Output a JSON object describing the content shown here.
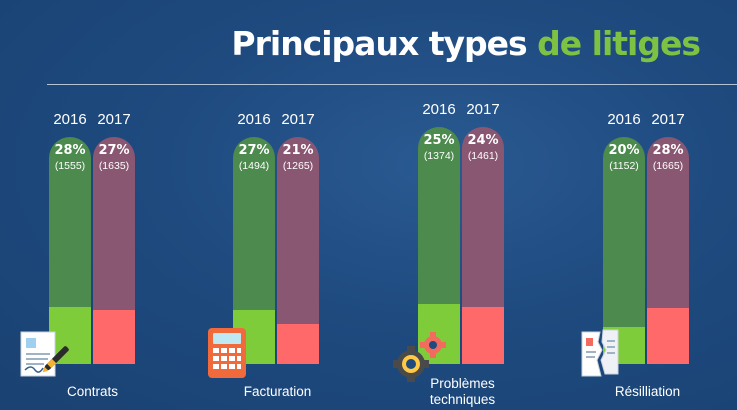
{
  "title": {
    "part1": "Principaux types ",
    "part2": "de litiges"
  },
  "colors": {
    "accent": "#7dc242",
    "bar2016_top": "#4c8a4e",
    "bar2016_bottom": "#7fcc3b",
    "bar2017_top": "#8a5772",
    "bar2017_bottom": "#ff6969"
  },
  "chart_data": {
    "type": "bar",
    "title": "Principaux types de litiges",
    "categories": [
      "Contrats",
      "Facturation",
      "Problèmes techniques",
      "Résilliation"
    ],
    "series": [
      {
        "name": "2016",
        "values": [
          28,
          27,
          25,
          20
        ],
        "counts": [
          1555,
          1494,
          1374,
          1152
        ]
      },
      {
        "name": "2017",
        "values": [
          27,
          21,
          24,
          28
        ],
        "counts": [
          1635,
          1265,
          1461,
          1665
        ]
      }
    ],
    "groups": [
      {
        "category": "Contrats",
        "icon": "contract-signature-icon",
        "bars": [
          {
            "year": "2016",
            "pct": "28%",
            "count": "(1555)"
          },
          {
            "year": "2017",
            "pct": "27%",
            "count": "(1635)"
          }
        ]
      },
      {
        "category": "Facturation",
        "icon": "calculator-icon",
        "bars": [
          {
            "year": "2016",
            "pct": "27%",
            "count": "(1494)"
          },
          {
            "year": "2017",
            "pct": "21%",
            "count": "(1265)"
          }
        ]
      },
      {
        "category": "Problèmes techniques",
        "icon": "gears-icon",
        "bars": [
          {
            "year": "2016",
            "pct": "25%",
            "count": "(1374)"
          },
          {
            "year": "2017",
            "pct": "24%",
            "count": "(1461)"
          }
        ]
      },
      {
        "category": "Résilliation",
        "icon": "torn-document-icon",
        "bars": [
          {
            "year": "2016",
            "pct": "20%",
            "count": "(1152)"
          },
          {
            "year": "2017",
            "pct": "28%",
            "count": "(1665)"
          }
        ]
      }
    ]
  }
}
